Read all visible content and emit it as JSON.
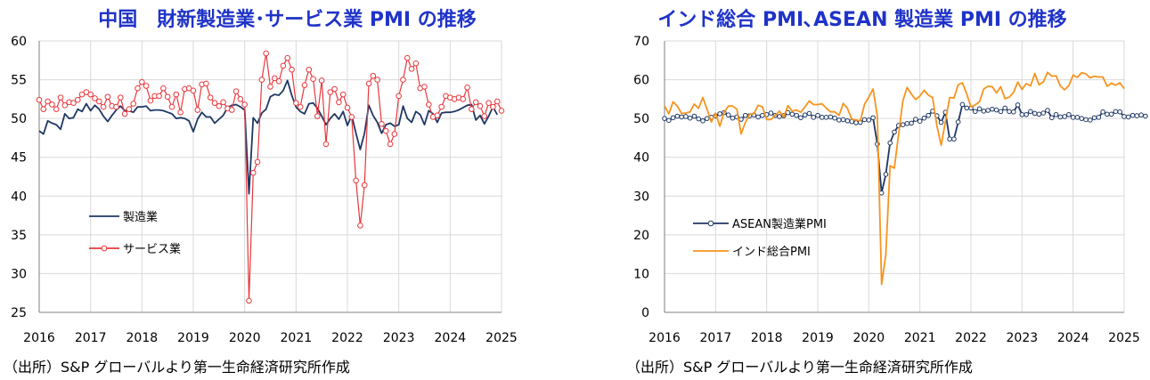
{
  "chart_data": [
    {
      "type": "line",
      "title": "中国　財新製造業･サービス業 PMI の推移",
      "source": "（出所）S&P グローバルより第一生命経済研究所作成",
      "xlabel": "",
      "ylabel": "",
      "x_ticks": [
        "2016",
        "2017",
        "2018",
        "2019",
        "2020",
        "2021",
        "2022",
        "2023",
        "2024",
        "2025"
      ],
      "y_ticks": [
        "25",
        "30",
        "35",
        "40",
        "45",
        "50",
        "55",
        "60"
      ],
      "xlim": [
        2016,
        2025
      ],
      "ylim": [
        25,
        60
      ],
      "grid": true,
      "legend_position": "left",
      "series": [
        {
          "name": "製造業",
          "color": "#1f3864",
          "marker": "none",
          "start": "2016-01",
          "values": [
            48.4,
            48.0,
            49.7,
            49.4,
            49.2,
            48.6,
            50.6,
            50.0,
            50.1,
            51.2,
            50.9,
            51.9,
            51.0,
            51.7,
            51.2,
            50.3,
            49.6,
            50.4,
            51.1,
            51.6,
            51.0,
            51.0,
            50.8,
            51.5,
            51.5,
            51.6,
            51.0,
            51.1,
            51.1,
            51.0,
            50.8,
            50.6,
            50.0,
            50.1,
            50.0,
            49.7,
            48.3,
            49.9,
            50.8,
            50.2,
            50.2,
            49.4,
            49.9,
            50.4,
            51.4,
            51.7,
            51.8,
            51.5,
            51.1,
            40.3,
            50.1,
            49.4,
            50.7,
            51.2,
            52.8,
            53.1,
            53.0,
            53.6,
            54.9,
            53.0,
            51.5,
            50.9,
            50.6,
            51.9,
            52.0,
            51.3,
            50.3,
            49.2,
            50.0,
            50.6,
            49.9,
            50.9,
            49.1,
            50.4,
            48.1,
            46.0,
            48.1,
            51.7,
            50.4,
            49.5,
            48.1,
            49.2,
            49.4,
            49.0,
            49.2,
            51.6,
            50.0,
            49.5,
            50.9,
            50.5,
            49.2,
            51.0,
            50.6,
            49.5,
            50.7,
            50.8,
            50.8,
            50.9,
            51.1,
            51.4,
            51.7,
            51.8,
            49.8,
            50.4,
            49.3,
            50.3,
            51.5,
            50.5
          ]
        },
        {
          "name": "サービス業",
          "color": "#e8383d",
          "marker": "circle",
          "start": "2016-01",
          "values": [
            52.4,
            51.2,
            52.2,
            51.8,
            51.2,
            52.7,
            51.7,
            52.1,
            52.0,
            52.4,
            53.1,
            53.4,
            53.1,
            52.6,
            52.2,
            51.5,
            52.8,
            51.6,
            51.5,
            52.7,
            50.6,
            51.2,
            51.9,
            53.9,
            54.7,
            54.2,
            52.3,
            52.9,
            52.9,
            53.9,
            52.8,
            51.5,
            53.1,
            50.8,
            53.8,
            53.9,
            53.6,
            51.1,
            54.4,
            54.5,
            52.7,
            52.0,
            51.6,
            52.1,
            51.3,
            51.1,
            53.5,
            52.5,
            51.8,
            26.5,
            43.0,
            44.4,
            55.0,
            58.4,
            54.1,
            55.2,
            54.8,
            56.8,
            57.8,
            56.3,
            52.0,
            51.5,
            54.3,
            56.3,
            55.1,
            50.3,
            54.9,
            46.7,
            53.4,
            53.8,
            52.1,
            53.1,
            51.4,
            50.2,
            42.0,
            36.2,
            41.4,
            54.5,
            55.5,
            55.0,
            49.3,
            48.4,
            46.7,
            48.0,
            52.9,
            55.0,
            57.8,
            56.4,
            57.1,
            53.9,
            54.1,
            51.8,
            50.2,
            50.4,
            51.5,
            52.9,
            52.7,
            52.5,
            52.7,
            52.5,
            54.0,
            51.2,
            52.1,
            51.6,
            50.3,
            52.0,
            51.5,
            52.2,
            51.0
          ]
        }
      ]
    },
    {
      "type": "line",
      "title": "インド総合 PMI､ASEAN 製造業 PMI の推移",
      "source": "（出所）S&P グローバルより第一生命経済研究所作成",
      "xlabel": "",
      "ylabel": "",
      "x_ticks": [
        "2016",
        "2017",
        "2018",
        "2019",
        "2020",
        "2021",
        "2022",
        "2023",
        "2024",
        "2025"
      ],
      "y_ticks": [
        "0",
        "10",
        "20",
        "30",
        "40",
        "50",
        "60",
        "70"
      ],
      "xlim": [
        2016,
        2025
      ],
      "ylim": [
        0,
        70
      ],
      "grid": true,
      "legend_position": "left",
      "series": [
        {
          "name": "ASEAN製造業PMI",
          "color": "#1f3864",
          "marker": "circle",
          "start": "2016-01",
          "values": [
            50.0,
            49.5,
            50.2,
            50.6,
            50.4,
            50.5,
            50.1,
            50.6,
            49.9,
            49.4,
            50.0,
            50.3,
            50.7,
            51.2,
            51.5,
            50.9,
            50.1,
            50.4,
            49.8,
            50.8,
            50.7,
            50.9,
            50.4,
            50.8,
            51.0,
            51.4,
            50.8,
            50.5,
            50.7,
            51.5,
            51.1,
            50.8,
            50.2,
            50.9,
            51.3,
            50.3,
            50.8,
            50.3,
            50.3,
            50.4,
            50.1,
            49.6,
            49.7,
            49.4,
            49.2,
            48.9,
            49.0,
            49.7,
            49.6,
            50.2,
            43.4,
            30.8,
            35.6,
            43.7,
            46.5,
            48.2,
            48.4,
            48.7,
            48.8,
            49.8,
            49.3,
            50.1,
            50.8,
            51.9,
            50.7,
            49.0,
            51.6,
            44.7,
            44.7,
            49.1,
            53.6,
            52.7,
            52.7,
            51.8,
            52.5,
            51.9,
            52.1,
            52.4,
            52.2,
            51.8,
            52.7,
            51.8,
            51.7,
            53.5,
            51.0,
            51.0,
            51.8,
            51.3,
            51.1,
            51.4,
            52.1,
            50.2,
            51.0,
            50.4,
            50.5,
            51.0,
            50.3,
            50.3,
            50.0,
            49.7,
            49.6,
            50.2,
            50.3,
            51.7,
            51.1,
            51.1,
            51.8,
            51.7,
            50.5,
            50.4,
            50.8,
            50.7,
            50.9,
            50.6
          ]
        },
        {
          "name": "インド総合PMI",
          "color": "#f7941d",
          "marker": "none",
          "start": "2016-01",
          "values": [
            53.3,
            51.2,
            54.3,
            53.2,
            51.3,
            51.4,
            51.7,
            53.7,
            52.6,
            55.4,
            52.3,
            49.1,
            51.4,
            48.0,
            51.6,
            53.2,
            53.2,
            52.4,
            46.0,
            49.0,
            51.1,
            51.2,
            53.4,
            53.0,
            49.7,
            49.7,
            50.8,
            51.9,
            50.4,
            53.3,
            51.9,
            52.2,
            51.6,
            53.0,
            54.5,
            53.6,
            53.6,
            53.8,
            52.7,
            51.7,
            51.7,
            50.8,
            53.9,
            52.6,
            49.8,
            49.6,
            49.4,
            53.7,
            55.5,
            57.6,
            50.6,
            7.2,
            14.8,
            37.8,
            37.2,
            46.0,
            54.6,
            58.0,
            56.3,
            54.9,
            55.8,
            57.3,
            56.0,
            55.4,
            48.1,
            43.1,
            49.2,
            55.4,
            55.3,
            58.7,
            59.2,
            56.4,
            53.0,
            53.5,
            54.3,
            57.6,
            58.3,
            58.2,
            56.6,
            58.2,
            55.1,
            55.5,
            56.7,
            59.4,
            57.5,
            59.0,
            58.4,
            61.6,
            58.7,
            59.4,
            61.9,
            60.9,
            61.0,
            58.4,
            57.4,
            58.5,
            61.2,
            60.6,
            61.8,
            61.5,
            60.5,
            60.9,
            60.7,
            60.7,
            58.3,
            59.1,
            58.6,
            59.2,
            57.7
          ]
        }
      ]
    }
  ]
}
